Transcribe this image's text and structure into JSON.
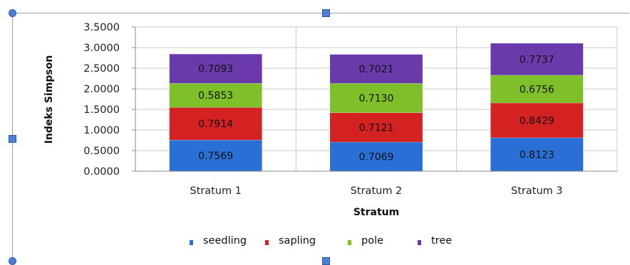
{
  "chart_data": {
    "type": "bar",
    "stacked": true,
    "title": "",
    "xlabel": "Stratum",
    "ylabel": "Indeks Simpson",
    "ylim": [
      0,
      3.5
    ],
    "yticks": [
      "0.0000",
      "0.5000",
      "1.0000",
      "1.5000",
      "2.0000",
      "2.5000",
      "3.0000",
      "3.5000"
    ],
    "grid": true,
    "legend_position": "bottom",
    "categories": [
      "Stratum 1",
      "Stratum 2",
      "Stratum 3"
    ],
    "series": [
      {
        "name": "seedling",
        "values": [
          0.7569,
          0.7069,
          0.8123
        ],
        "labels": [
          "0.7569",
          "0.7069",
          "0.8123"
        ],
        "color": "#2a6fd6"
      },
      {
        "name": "sapling",
        "values": [
          0.7914,
          0.7121,
          0.8429
        ],
        "labels": [
          "0.7914",
          "0.7121",
          "0.8429"
        ],
        "color": "#d42222"
      },
      {
        "name": "pole",
        "values": [
          0.5853,
          0.713,
          0.6756
        ],
        "labels": [
          "0.5853",
          "0.7130",
          "0.6756"
        ],
        "color": "#7fbf2a"
      },
      {
        "name": "tree",
        "values": [
          0.7093,
          0.7021,
          0.7737
        ],
        "labels": [
          "0.7093",
          "0.7021",
          "0.7737"
        ],
        "color": "#6a3aab"
      }
    ]
  }
}
